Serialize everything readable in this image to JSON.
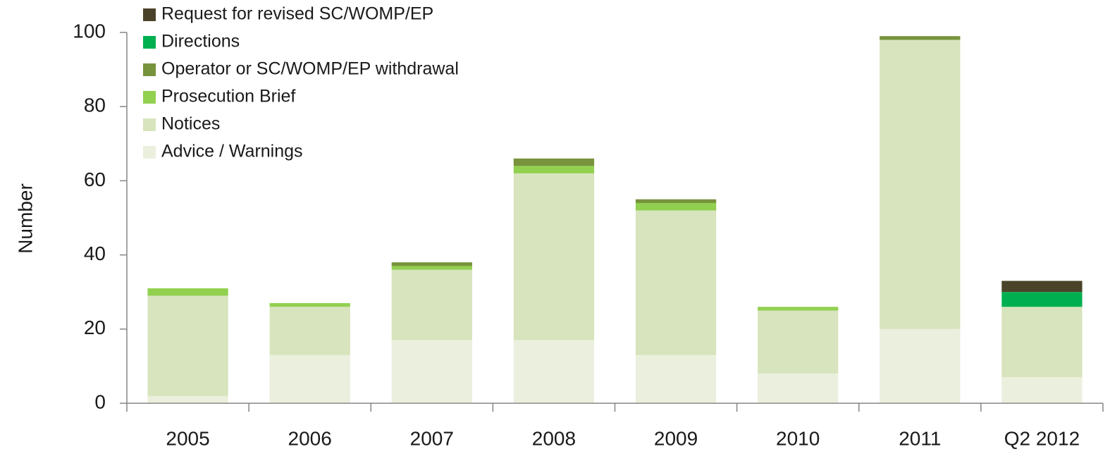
{
  "chart_data": {
    "type": "stacked_bar",
    "y_label": "Number",
    "categories": [
      "2005",
      "2006",
      "2007",
      "2008",
      "2009",
      "2010",
      "2011",
      "Q2 2012"
    ],
    "series": [
      {
        "name": "Advice / Warnings",
        "color": "#ebf0de",
        "values": [
          2,
          13,
          17,
          17,
          13,
          8,
          20,
          7
        ]
      },
      {
        "name": "Notices",
        "color": "#d7e4bd",
        "values": [
          27,
          13,
          19,
          45,
          39,
          17,
          78,
          19
        ]
      },
      {
        "name": "Prosecution Brief",
        "color": "#92d050",
        "values": [
          2,
          1,
          1,
          2,
          2,
          1,
          0,
          0
        ]
      },
      {
        "name": "Operator or SC/WOMP/EP withdrawal",
        "color": "#77933c",
        "values": [
          0,
          0,
          1,
          2,
          1,
          0,
          1,
          0
        ]
      },
      {
        "name": "Directions",
        "color": "#00b050",
        "values": [
          0,
          0,
          0,
          0,
          0,
          0,
          0,
          4
        ]
      },
      {
        "name": "Request for revised SC/WOMP/EP",
        "color": "#4a4329",
        "values": [
          0,
          0,
          0,
          0,
          0,
          0,
          0,
          3
        ]
      }
    ],
    "ylim": [
      0,
      100
    ],
    "yticks": [
      0,
      20,
      40,
      60,
      80,
      100
    ],
    "legend": "upper left"
  }
}
